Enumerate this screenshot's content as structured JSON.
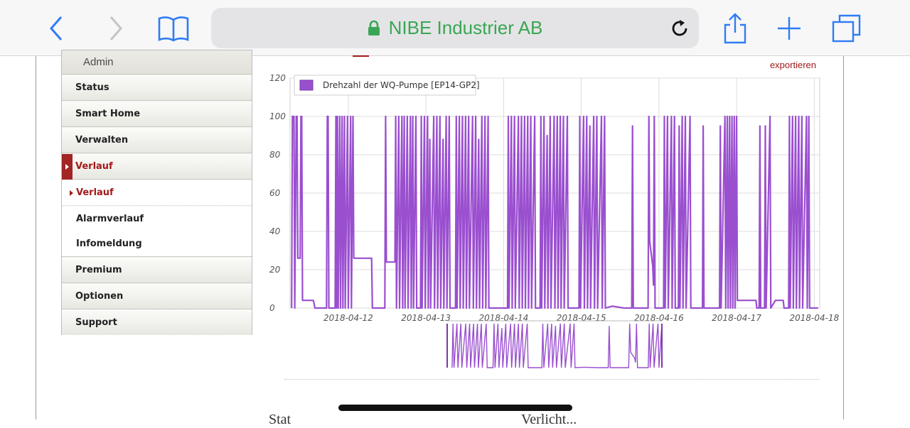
{
  "browser": {
    "url_title": "NIBE Industrier AB",
    "colors": {
      "url_text": "#3aa655",
      "icon": "#2f7cf6"
    },
    "icons": [
      "back-icon",
      "forward-icon",
      "bookmarks-icon",
      "lock-icon",
      "reload-icon",
      "share-icon",
      "plus-icon",
      "tabs-icon"
    ]
  },
  "sidebar": {
    "header": "Admin",
    "items": [
      {
        "label": "Status"
      },
      {
        "label": "Smart Home"
      },
      {
        "label": "Verwalten"
      },
      {
        "label": "Verlauf",
        "active": true
      }
    ],
    "sub_items": [
      {
        "label": "Verlauf",
        "active": true
      },
      {
        "label": "Alarmverlauf"
      },
      {
        "label": "Infomeldung"
      }
    ],
    "items_after": [
      {
        "label": "Premium"
      },
      {
        "label": "Optionen"
      },
      {
        "label": "Support"
      }
    ]
  },
  "export_label": "exportieren",
  "bottom_text": {
    "left": "Stat",
    "right": "Verlicht..."
  },
  "chart_data": {
    "type": "line",
    "title": "",
    "xlabel": "",
    "ylabel": "",
    "ylim": [
      0,
      120
    ],
    "yticks": [
      "0",
      "20",
      "40",
      "60",
      "80",
      "100",
      "120"
    ],
    "xticks": [
      "2018-04-12",
      "2018-04-13",
      "2018-04-14",
      "2018-04-15",
      "2018-04-16",
      "2018-04-17",
      "2018-04-18"
    ],
    "grid": true,
    "legend": "top-left",
    "color": "#9a4fcf",
    "series": [
      {
        "name": "Drehzahl der WQ-Pumpe [EP14-GP2]",
        "points": [
          [
            11.27,
            0
          ],
          [
            11.28,
            100
          ],
          [
            11.3,
            100
          ],
          [
            11.31,
            0
          ],
          [
            11.33,
            100
          ],
          [
            11.34,
            100
          ],
          [
            11.35,
            26
          ],
          [
            11.38,
            26
          ],
          [
            11.39,
            100
          ],
          [
            11.4,
            100
          ],
          [
            11.41,
            4
          ],
          [
            11.55,
            4
          ],
          [
            11.57,
            0
          ],
          [
            11.72,
            0
          ],
          [
            11.73,
            100
          ],
          [
            11.74,
            100
          ],
          [
            11.75,
            0
          ],
          [
            11.83,
            0
          ],
          [
            11.84,
            100
          ],
          [
            11.85,
            0
          ],
          [
            11.86,
            100
          ],
          [
            11.87,
            0
          ],
          [
            11.89,
            100
          ],
          [
            11.9,
            0
          ],
          [
            11.92,
            100
          ],
          [
            11.93,
            0
          ],
          [
            11.95,
            100
          ],
          [
            11.96,
            0
          ],
          [
            11.99,
            100
          ],
          [
            12.0,
            0
          ],
          [
            12.03,
            100
          ],
          [
            12.04,
            0
          ],
          [
            12.06,
            100
          ],
          [
            12.07,
            26
          ],
          [
            12.3,
            26
          ],
          [
            12.31,
            0
          ],
          [
            12.47,
            0
          ],
          [
            12.48,
            100
          ],
          [
            12.49,
            24
          ],
          [
            12.6,
            24
          ],
          [
            12.61,
            100
          ],
          [
            12.62,
            0
          ],
          [
            12.65,
            100
          ],
          [
            12.66,
            0
          ],
          [
            12.69,
            100
          ],
          [
            12.7,
            0
          ],
          [
            12.72,
            100
          ],
          [
            12.73,
            0
          ],
          [
            12.76,
            100
          ],
          [
            12.77,
            0
          ],
          [
            12.8,
            100
          ],
          [
            12.81,
            0
          ],
          [
            12.83,
            100
          ],
          [
            12.84,
            0
          ],
          [
            12.87,
            100
          ],
          [
            12.88,
            0
          ],
          [
            12.93,
            0
          ],
          [
            12.94,
            100
          ],
          [
            12.95,
            0
          ],
          [
            12.98,
            100
          ],
          [
            12.99,
            0
          ],
          [
            13.02,
            100
          ],
          [
            13.03,
            0
          ],
          [
            13.05,
            88
          ],
          [
            13.06,
            0
          ],
          [
            13.1,
            100
          ],
          [
            13.11,
            0
          ],
          [
            13.14,
            100
          ],
          [
            13.15,
            0
          ],
          [
            13.18,
            100
          ],
          [
            13.19,
            0
          ],
          [
            13.22,
            88
          ],
          [
            13.23,
            0
          ],
          [
            13.26,
            100
          ],
          [
            13.27,
            0
          ],
          [
            13.3,
            100
          ],
          [
            13.31,
            0
          ],
          [
            13.38,
            0
          ],
          [
            13.39,
            100
          ],
          [
            13.4,
            0
          ],
          [
            13.43,
            100
          ],
          [
            13.44,
            0
          ],
          [
            13.47,
            100
          ],
          [
            13.48,
            0
          ],
          [
            13.51,
            100
          ],
          [
            13.52,
            0
          ],
          [
            13.55,
            100
          ],
          [
            13.56,
            0
          ],
          [
            13.6,
            100
          ],
          [
            13.61,
            0
          ],
          [
            13.64,
            100
          ],
          [
            13.65,
            0
          ],
          [
            13.68,
            88
          ],
          [
            13.69,
            0
          ],
          [
            13.72,
            100
          ],
          [
            13.73,
            0
          ],
          [
            13.76,
            100
          ],
          [
            13.77,
            0
          ],
          [
            13.8,
            100
          ],
          [
            13.81,
            0
          ],
          [
            14.05,
            0
          ],
          [
            14.06,
            100
          ],
          [
            14.07,
            0
          ],
          [
            14.1,
            100
          ],
          [
            14.11,
            0
          ],
          [
            14.14,
            100
          ],
          [
            14.15,
            0
          ],
          [
            14.19,
            100
          ],
          [
            14.2,
            0
          ],
          [
            14.23,
            100
          ],
          [
            14.24,
            0
          ],
          [
            14.27,
            100
          ],
          [
            14.28,
            0
          ],
          [
            14.31,
            100
          ],
          [
            14.32,
            0
          ],
          [
            14.35,
            100
          ],
          [
            14.36,
            0
          ],
          [
            14.4,
            100
          ],
          [
            14.41,
            0
          ],
          [
            14.47,
            0
          ],
          [
            14.48,
            100
          ],
          [
            14.49,
            0
          ],
          [
            14.52,
            100
          ],
          [
            14.53,
            0
          ],
          [
            14.56,
            90
          ],
          [
            14.57,
            0
          ],
          [
            14.6,
            100
          ],
          [
            14.61,
            0
          ],
          [
            14.65,
            100
          ],
          [
            14.66,
            0
          ],
          [
            14.69,
            100
          ],
          [
            14.7,
            0
          ],
          [
            14.73,
            100
          ],
          [
            14.74,
            0
          ],
          [
            14.77,
            100
          ],
          [
            14.78,
            0
          ],
          [
            14.82,
            100
          ],
          [
            14.83,
            0
          ],
          [
            14.97,
            0
          ],
          [
            14.98,
            100
          ],
          [
            14.99,
            0
          ],
          [
            15.03,
            100
          ],
          [
            15.04,
            0
          ],
          [
            15.07,
            100
          ],
          [
            15.08,
            0
          ],
          [
            15.11,
            95
          ],
          [
            15.12,
            0
          ],
          [
            15.16,
            100
          ],
          [
            15.17,
            0
          ],
          [
            15.2,
            100
          ],
          [
            15.21,
            0
          ],
          [
            15.26,
            100
          ],
          [
            15.27,
            0
          ],
          [
            15.3,
            100
          ],
          [
            15.31,
            0
          ],
          [
            15.4,
            1
          ],
          [
            15.55,
            0
          ],
          [
            15.65,
            0
          ],
          [
            15.66,
            95
          ],
          [
            15.67,
            0
          ],
          [
            15.86,
            0
          ],
          [
            15.87,
            100
          ],
          [
            15.88,
            35
          ],
          [
            15.92,
            22
          ],
          [
            15.93,
            12
          ],
          [
            15.94,
            100
          ],
          [
            15.95,
            0
          ],
          [
            16.06,
            0
          ],
          [
            16.07,
            100
          ],
          [
            16.08,
            0
          ],
          [
            16.11,
            100
          ],
          [
            16.12,
            0
          ],
          [
            16.16,
            100
          ],
          [
            16.17,
            0
          ],
          [
            16.2,
            100
          ],
          [
            16.21,
            0
          ],
          [
            16.25,
            0
          ],
          [
            16.26,
            95
          ],
          [
            16.27,
            0
          ],
          [
            16.3,
            100
          ],
          [
            16.31,
            0
          ],
          [
            16.34,
            100
          ],
          [
            16.35,
            0
          ],
          [
            16.4,
            100
          ],
          [
            16.41,
            0
          ],
          [
            16.56,
            0
          ],
          [
            16.57,
            95
          ],
          [
            16.58,
            0
          ],
          [
            16.78,
            0
          ],
          [
            16.79,
            95
          ],
          [
            16.8,
            0
          ],
          [
            16.85,
            100
          ],
          [
            16.86,
            0
          ],
          [
            16.88,
            100
          ],
          [
            16.89,
            0
          ],
          [
            16.91,
            100
          ],
          [
            16.92,
            0
          ],
          [
            16.94,
            100
          ],
          [
            16.95,
            0
          ],
          [
            16.97,
            100
          ],
          [
            16.98,
            0
          ],
          [
            17.0,
            100
          ],
          [
            17.01,
            4
          ],
          [
            17.25,
            4
          ],
          [
            17.26,
            0
          ],
          [
            17.29,
            0
          ],
          [
            17.3,
            95
          ],
          [
            17.31,
            0
          ],
          [
            17.36,
            0
          ],
          [
            17.37,
            95
          ],
          [
            17.38,
            0
          ],
          [
            17.43,
            100
          ],
          [
            17.44,
            0
          ],
          [
            17.5,
            4
          ],
          [
            17.6,
            4
          ],
          [
            17.61,
            0
          ],
          [
            17.67,
            0
          ],
          [
            17.68,
            100
          ],
          [
            17.69,
            0
          ],
          [
            17.72,
            100
          ],
          [
            17.73,
            0
          ],
          [
            17.76,
            100
          ],
          [
            17.77,
            0
          ],
          [
            17.8,
            100
          ],
          [
            17.81,
            0
          ],
          [
            17.84,
            100
          ],
          [
            17.85,
            0
          ],
          [
            17.9,
            100
          ],
          [
            17.91,
            0
          ],
          [
            17.93,
            100
          ],
          [
            17.94,
            0
          ],
          [
            18.05,
            0
          ]
        ]
      }
    ],
    "navigator": {
      "x_start": "2018-04-14",
      "x_end": "2018-04-16"
    }
  }
}
